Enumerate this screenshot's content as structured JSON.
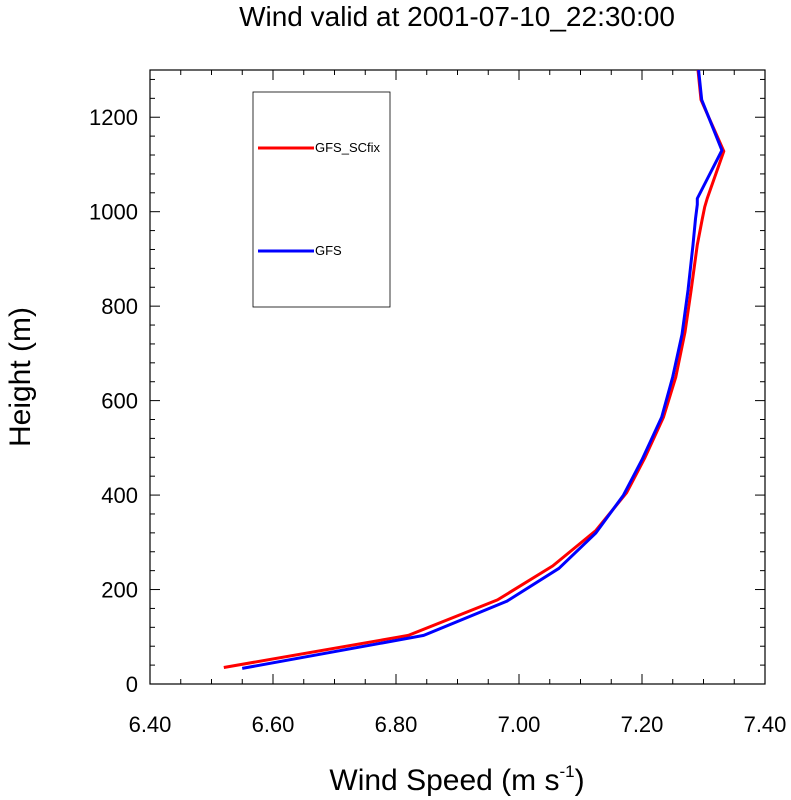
{
  "chart_data": {
    "type": "line",
    "title": "Wind valid at 2001-07-10_22:30:00",
    "xlabel": "Wind Speed (m s",
    "xlabel_sup": "-1",
    "xlabel_end": ")",
    "ylabel": "Height (m)",
    "xlim": [
      6.4,
      7.4
    ],
    "ylim": [
      0,
      1300
    ],
    "xticks": [
      6.4,
      6.6,
      6.8,
      7.0,
      7.2,
      7.4
    ],
    "xtick_labels": [
      "6.40",
      "6.60",
      "6.80",
      "7.00",
      "7.20",
      "7.40"
    ],
    "yticks": [
      0,
      200,
      400,
      600,
      800,
      1000,
      1200
    ],
    "ytick_labels": [
      "0",
      "200",
      "400",
      "600",
      "800",
      "1000",
      "1200"
    ],
    "grid": false,
    "legend_position": "top-left",
    "series": [
      {
        "name": "GFS_SCfix",
        "color": "#ff0000",
        "x": [
          6.52,
          6.82,
          6.965,
          7.055,
          7.125,
          7.175,
          7.205,
          7.235,
          7.255,
          7.27,
          7.28,
          7.29,
          7.298,
          7.302,
          7.306,
          7.333,
          7.296,
          7.291
        ],
        "y": [
          35,
          103,
          178,
          250,
          325,
          405,
          480,
          565,
          650,
          745,
          835,
          930,
          985,
          1010,
          1028,
          1128,
          1237,
          1300
        ]
      },
      {
        "name": "GFS",
        "color": "#0000ff",
        "x": [
          6.55,
          6.845,
          6.98,
          7.065,
          7.125,
          7.17,
          7.2,
          7.232,
          7.25,
          7.265,
          7.275,
          7.283,
          7.287,
          7.29,
          7.29,
          7.33,
          7.297,
          7.292
        ],
        "y": [
          33,
          103,
          175,
          245,
          320,
          400,
          475,
          565,
          650,
          740,
          835,
          930,
          985,
          1015,
          1028,
          1130,
          1237,
          1300
        ]
      }
    ]
  }
}
